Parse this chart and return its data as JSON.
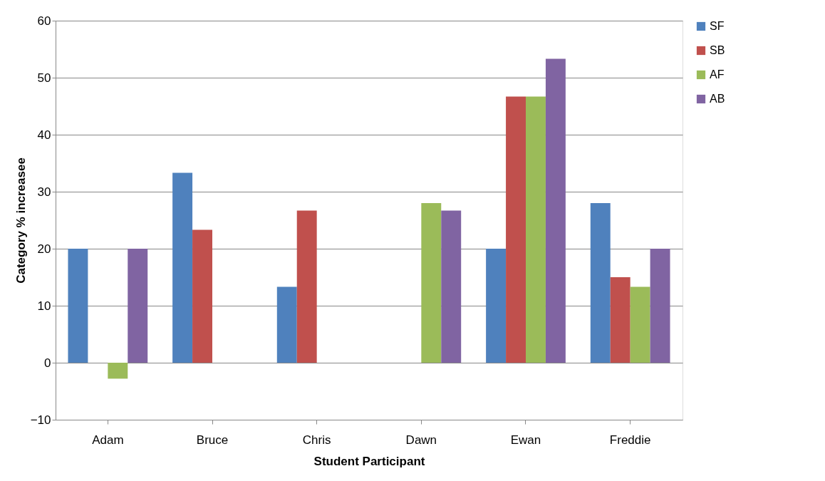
{
  "chart_data": {
    "type": "bar",
    "xlabel": "Student Participant",
    "ylabel": "Category % increasee",
    "categories": [
      "Adam",
      "Bruce",
      "Chris",
      "Dawn",
      "Ewan",
      "Freddie"
    ],
    "series": [
      {
        "name": "SF",
        "color": "#4f81bd",
        "values": [
          20,
          33.3,
          13.3,
          0,
          20,
          28
        ]
      },
      {
        "name": "SB",
        "color": "#c0504d",
        "values": [
          0,
          23.3,
          26.7,
          0,
          46.7,
          15
        ]
      },
      {
        "name": "AF",
        "color": "#9bbb59",
        "values": [
          -2.8,
          0,
          0,
          28,
          46.7,
          13.3
        ]
      },
      {
        "name": "AB",
        "color": "#8064a2",
        "values": [
          20,
          0,
          0,
          26.7,
          53.3,
          20
        ]
      }
    ],
    "ylim": [
      -10,
      60
    ],
    "yticks": [
      -10,
      0,
      10,
      20,
      30,
      40,
      50,
      60
    ],
    "grid": "y",
    "legend": "right"
  }
}
